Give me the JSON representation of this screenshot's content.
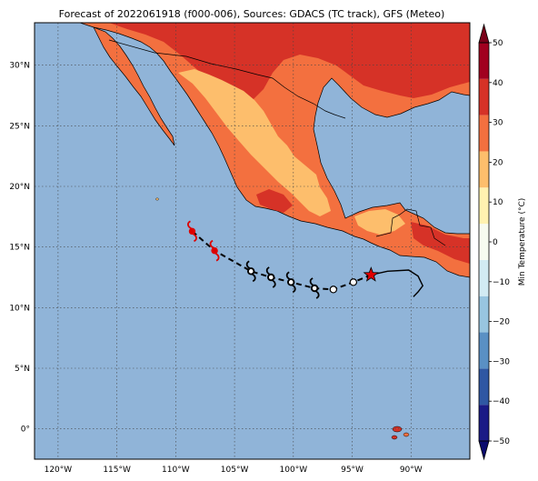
{
  "title": "Forecast of 2022061918 (f000-006), Sources: GDACS (TC track), GFS (Meteo)",
  "map": {
    "lat_labels": [
      "30°N",
      "25°N",
      "20°N",
      "15°N",
      "10°N",
      "5°N",
      "0°"
    ],
    "lat_values": [
      30,
      25,
      20,
      15,
      10,
      5,
      0
    ],
    "lon_labels": [
      "120°W",
      "115°W",
      "110°W",
      "105°W",
      "100°W",
      "95°W",
      "90°W"
    ],
    "lon_values": [
      -120,
      -115,
      -110,
      -105,
      -100,
      -95,
      -90
    ],
    "extent": {
      "lon_min": -122,
      "lon_max": -85,
      "lat_min": -2.5,
      "lat_max": 33.5
    },
    "ocean_color": "#90b4d8",
    "grid": "dotted"
  },
  "colorbar": {
    "label": "Min Temperature (°C)",
    "tick_labels": [
      "50",
      "40",
      "30",
      "20",
      "10",
      "0",
      "−10",
      "−20",
      "−30",
      "−40",
      "−50"
    ],
    "tick_values": [
      50,
      40,
      30,
      20,
      10,
      0,
      -10,
      -20,
      -30,
      -40,
      -50
    ],
    "colors": [
      "#1a1a86",
      "#2f57a3",
      "#5a90c4",
      "#98c5e0",
      "#d2ebf3",
      "#f7fbf0",
      "#fff2b0",
      "#fdbe6c",
      "#f3703f",
      "#d63227",
      "#a1001f"
    ],
    "extend": "both"
  },
  "track": {
    "observed_points": [
      {
        "lon": -93.4,
        "lat": 12.7,
        "marker": "star"
      },
      {
        "lon": -94.9,
        "lat": 12.1,
        "marker": "circle"
      },
      {
        "lon": -96.6,
        "lat": 11.5,
        "marker": "circle"
      },
      {
        "lon": -98.2,
        "lat": 11.6,
        "marker": "circle"
      },
      {
        "lon": -100.2,
        "lat": 12.1,
        "marker": "circle"
      },
      {
        "lon": -101.9,
        "lat": 12.5,
        "marker": "circle"
      },
      {
        "lon": -103.6,
        "lat": 13.0,
        "marker": "circle"
      }
    ],
    "forecast_points": [
      {
        "lon": -106.7,
        "lat": 14.7
      },
      {
        "lon": -108.6,
        "lat": 16.3
      }
    ],
    "storm_symbols_black": [
      {
        "lon": -98.2,
        "lat": 11.6
      },
      {
        "lon": -100.2,
        "lat": 12.1
      },
      {
        "lon": -101.9,
        "lat": 12.5
      },
      {
        "lon": -103.6,
        "lat": 13.0
      }
    ],
    "storm_symbols_red": [
      {
        "lon": -106.7,
        "lat": 14.7
      },
      {
        "lon": -108.6,
        "lat": 16.3
      }
    ],
    "colors": {
      "observed": "#000000",
      "forecast": "#dd0000"
    }
  }
}
